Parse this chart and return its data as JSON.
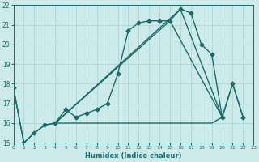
{
  "xlabel": "Humidex (Indice chaleur)",
  "background_color": "#cdeaea",
  "line_color": "#1a6b6b",
  "xlim": [
    0,
    23
  ],
  "ylim": [
    15,
    22
  ],
  "xticks": [
    0,
    1,
    2,
    3,
    4,
    5,
    6,
    7,
    8,
    9,
    10,
    11,
    12,
    13,
    14,
    15,
    16,
    17,
    18,
    19,
    20,
    21,
    22,
    23
  ],
  "yticks": [
    15,
    16,
    17,
    18,
    19,
    20,
    21,
    22
  ],
  "main_x": [
    0,
    1,
    2,
    3,
    4,
    5,
    6,
    7,
    8,
    9,
    10,
    11,
    12,
    13,
    14,
    15,
    16,
    17,
    18,
    19,
    20,
    21,
    22
  ],
  "main_y": [
    17.8,
    15.0,
    15.5,
    15.9,
    16.0,
    16.7,
    16.3,
    16.5,
    16.7,
    17.0,
    18.5,
    20.7,
    21.1,
    21.2,
    21.2,
    21.2,
    21.8,
    21.6,
    20.0,
    19.5,
    16.3,
    18.0,
    16.3
  ],
  "trend1_x": [
    4,
    16,
    20
  ],
  "trend1_y": [
    16.0,
    21.8,
    16.3
  ],
  "trend2_x": [
    4,
    15,
    20
  ],
  "trend2_y": [
    16.0,
    21.2,
    16.3
  ],
  "flat_x": [
    0,
    1,
    2,
    3,
    4,
    5,
    6,
    7,
    8,
    9,
    10,
    11,
    12,
    13,
    14,
    15,
    16,
    17,
    18,
    19,
    20,
    21,
    22
  ],
  "flat_y": [
    17.8,
    15.0,
    15.5,
    15.9,
    16.0,
    16.0,
    16.0,
    16.0,
    16.0,
    16.0,
    16.0,
    16.0,
    16.0,
    16.0,
    16.0,
    16.0,
    16.0,
    16.0,
    16.0,
    16.0,
    16.3,
    18.0,
    16.3
  ],
  "grid_color": "#a8d4d4",
  "linewidth": 1.0,
  "marker_size": 2.5
}
